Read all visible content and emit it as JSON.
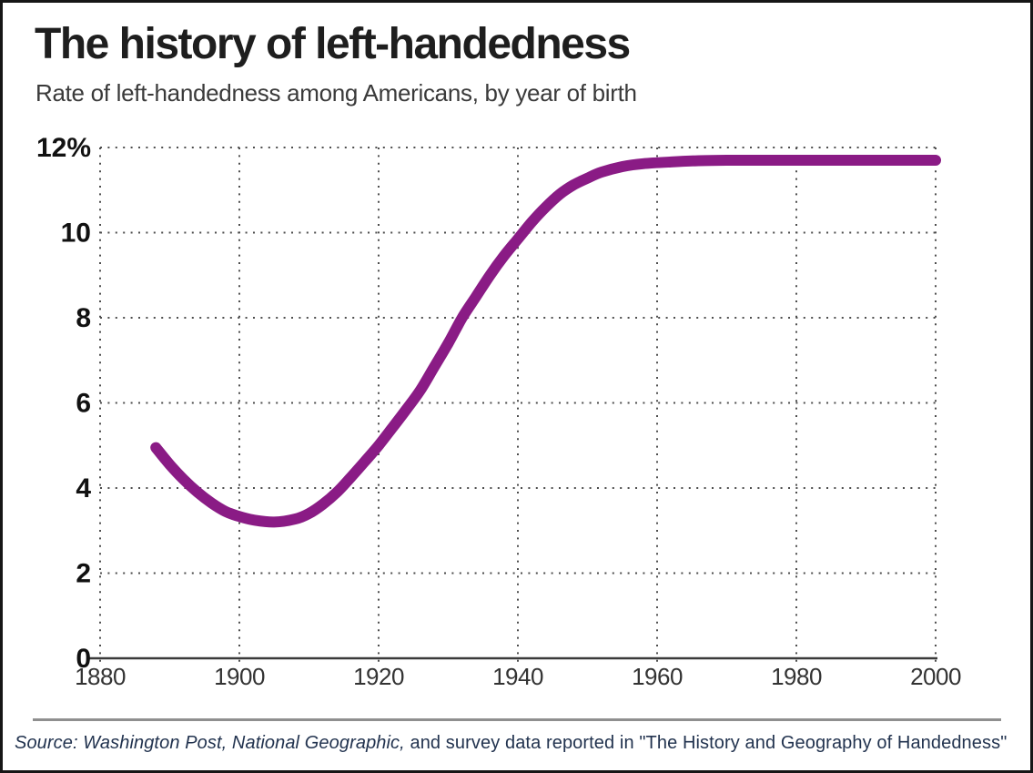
{
  "header": {
    "title": "The history of left-handedness",
    "subtitle": "Rate of left-handedness among Americans, by year of birth"
  },
  "footer": {
    "source_italic": "Source: Washington Post, National Geographic,",
    "source_regular": " and survey data reported in \"The History and Geography of Handedness\""
  },
  "chart_data": {
    "type": "line",
    "title": "The history of left-handedness",
    "subtitle": "Rate of left-handedness among Americans, by year of birth",
    "xlabel": "year of birth",
    "ylabel": "Rate of left-handedness (%)",
    "xlim": [
      1880,
      2000
    ],
    "ylim": [
      0,
      12
    ],
    "grid": "dotted",
    "legend": "none",
    "line_color": "#8a1b85",
    "grid_color": "#4d4d4d",
    "axis_color": "#3a3a3a",
    "x_ticks": [
      {
        "value": 1880,
        "label": "1880"
      },
      {
        "value": 1900,
        "label": "1900"
      },
      {
        "value": 1920,
        "label": "1920"
      },
      {
        "value": 1940,
        "label": "1940"
      },
      {
        "value": 1960,
        "label": "1960"
      },
      {
        "value": 1980,
        "label": "1980"
      },
      {
        "value": 2000,
        "label": "2000"
      }
    ],
    "y_ticks": [
      {
        "value": 12,
        "label": "12%"
      },
      {
        "value": 10,
        "label": "10"
      },
      {
        "value": 8,
        "label": "8"
      },
      {
        "value": 6,
        "label": "6"
      },
      {
        "value": 4,
        "label": "4"
      },
      {
        "value": 2,
        "label": "2"
      },
      {
        "value": 0,
        "label": "0"
      }
    ],
    "series": [
      {
        "name": "Rate of left-handedness among Americans",
        "color": "#8a1b85",
        "points": [
          [
            1888,
            4.95
          ],
          [
            1890,
            4.55
          ],
          [
            1892,
            4.2
          ],
          [
            1894,
            3.9
          ],
          [
            1896,
            3.65
          ],
          [
            1898,
            3.45
          ],
          [
            1900,
            3.33
          ],
          [
            1902,
            3.25
          ],
          [
            1905,
            3.2
          ],
          [
            1908,
            3.27
          ],
          [
            1910,
            3.4
          ],
          [
            1912,
            3.62
          ],
          [
            1914,
            3.9
          ],
          [
            1916,
            4.25
          ],
          [
            1918,
            4.62
          ],
          [
            1920,
            5.0
          ],
          [
            1922,
            5.42
          ],
          [
            1924,
            5.85
          ],
          [
            1926,
            6.3
          ],
          [
            1928,
            6.85
          ],
          [
            1930,
            7.4
          ],
          [
            1932,
            8.0
          ],
          [
            1934,
            8.5
          ],
          [
            1936,
            9.0
          ],
          [
            1938,
            9.45
          ],
          [
            1940,
            9.85
          ],
          [
            1942,
            10.25
          ],
          [
            1944,
            10.6
          ],
          [
            1946,
            10.9
          ],
          [
            1948,
            11.12
          ],
          [
            1950,
            11.28
          ],
          [
            1952,
            11.42
          ],
          [
            1955,
            11.55
          ],
          [
            1958,
            11.62
          ],
          [
            1962,
            11.66
          ],
          [
            1966,
            11.69
          ],
          [
            1970,
            11.7
          ],
          [
            1975,
            11.7
          ],
          [
            1980,
            11.7
          ],
          [
            1985,
            11.7
          ],
          [
            1990,
            11.7
          ],
          [
            1995,
            11.7
          ],
          [
            2000,
            11.7
          ]
        ]
      }
    ]
  }
}
